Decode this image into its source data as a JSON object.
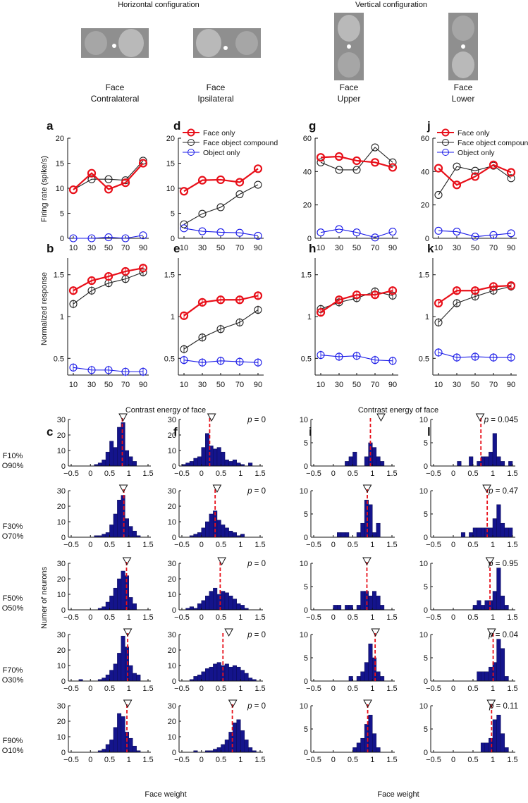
{
  "configs": [
    {
      "title": "Horizontal configuration"
    },
    {
      "title": "Vertical configuration"
    }
  ],
  "conditions": [
    {
      "label1": "Face",
      "label2": "Contralateral"
    },
    {
      "label1": "Face",
      "label2": "Ipsilateral"
    },
    {
      "label1": "Face",
      "label2": "Upper"
    },
    {
      "label1": "Face",
      "label2": "Lower"
    }
  ],
  "legend": {
    "face_only": "Face only",
    "compound": "Face object compound",
    "object_only": "Object only",
    "colors": {
      "face_only": "#e8101a",
      "compound": "#222222",
      "object_only": "#1a1ae8"
    }
  },
  "axis_labels": {
    "firing_rate": "Firing rate (spike/s)",
    "normalized": "Normalized response",
    "contrast": "Contrast energy of face",
    "neurons": "Numer of neurons",
    "face_weight": "Face weight"
  },
  "row_labels": [
    {
      "a": "F10%",
      "b": "O90%"
    },
    {
      "a": "F30%",
      "b": "O70%"
    },
    {
      "a": "F50%",
      "b": "O50%"
    },
    {
      "a": "F70%",
      "b": "O30%"
    },
    {
      "a": "F90%",
      "b": "O10%"
    }
  ],
  "chart_data": [
    {
      "panel": "a",
      "type": "line",
      "xticks": [
        "10",
        "30",
        "50",
        "70",
        "90"
      ],
      "ylim": [
        0,
        20
      ],
      "yticks": [
        "0",
        "5",
        "10",
        "15",
        "20"
      ],
      "series": [
        {
          "key": "face_only",
          "values": [
            9.7,
            13.0,
            9.8,
            11.1,
            15.0
          ]
        },
        {
          "key": "compound",
          "values": [
            9.7,
            11.8,
            11.8,
            11.6,
            15.5
          ]
        },
        {
          "key": "object_only",
          "values": [
            0.0,
            0.0,
            0.2,
            0.0,
            0.6
          ]
        }
      ]
    },
    {
      "panel": "d",
      "type": "line",
      "xticks": [
        "10",
        "30",
        "50",
        "70",
        "90"
      ],
      "ylim": [
        0,
        20
      ],
      "yticks": [
        "0",
        "5",
        "10",
        "15",
        "20"
      ],
      "legend": true,
      "series": [
        {
          "key": "face_only",
          "values": [
            9.4,
            11.6,
            11.7,
            11.2,
            13.9
          ]
        },
        {
          "key": "compound",
          "values": [
            2.8,
            4.9,
            6.2,
            8.8,
            10.7
          ]
        },
        {
          "key": "object_only",
          "values": [
            2.0,
            1.4,
            1.2,
            1.1,
            0.5
          ]
        }
      ]
    },
    {
      "panel": "g",
      "type": "line",
      "xticks": [
        "10",
        "30",
        "50",
        "70",
        "90"
      ],
      "ylim": [
        0,
        60
      ],
      "yticks": [
        "0",
        "20",
        "40",
        "60"
      ],
      "series": [
        {
          "key": "face_only",
          "values": [
            48.5,
            49.0,
            46.5,
            45.5,
            42.5
          ]
        },
        {
          "key": "compound",
          "values": [
            45.5,
            41.0,
            41.0,
            54.5,
            45.5
          ]
        },
        {
          "key": "object_only",
          "values": [
            3.5,
            5.5,
            3.5,
            0.5,
            4.0
          ]
        }
      ]
    },
    {
      "panel": "j",
      "type": "line",
      "xticks": [
        "10",
        "30",
        "50",
        "70",
        "90"
      ],
      "ylim": [
        0,
        60
      ],
      "yticks": [
        "0",
        "20",
        "40",
        "60"
      ],
      "legend": true,
      "series": [
        {
          "key": "face_only",
          "values": [
            42.0,
            32.0,
            37.0,
            44.0,
            39.5
          ]
        },
        {
          "key": "compound",
          "values": [
            26.0,
            43.0,
            40.5,
            43.5,
            36.0
          ]
        },
        {
          "key": "object_only",
          "values": [
            4.5,
            4.0,
            1.0,
            2.0,
            3.0
          ]
        }
      ]
    },
    {
      "panel": "b",
      "type": "line",
      "xticks": [
        "10",
        "30",
        "50",
        "70",
        "90"
      ],
      "ylim": [
        0.3,
        1.7
      ],
      "yticks": [
        "0.5",
        "1",
        "1.5"
      ],
      "ytick_values": [
        0.5,
        1,
        1.5
      ],
      "series": [
        {
          "key": "face_only",
          "values": [
            1.31,
            1.43,
            1.48,
            1.54,
            1.58
          ]
        },
        {
          "key": "compound",
          "values": [
            1.15,
            1.31,
            1.4,
            1.45,
            1.53
          ]
        },
        {
          "key": "object_only",
          "values": [
            0.39,
            0.36,
            0.36,
            0.34,
            0.34
          ]
        }
      ]
    },
    {
      "panel": "e",
      "type": "line",
      "xticks": [
        "10",
        "30",
        "50",
        "70",
        "90"
      ],
      "ylim": [
        0.3,
        1.7
      ],
      "yticks": [
        "0.5",
        "1",
        "1.5"
      ],
      "ytick_values": [
        0.5,
        1,
        1.5
      ],
      "series": [
        {
          "key": "face_only",
          "values": [
            1.01,
            1.17,
            1.2,
            1.2,
            1.25
          ]
        },
        {
          "key": "compound",
          "values": [
            0.61,
            0.75,
            0.85,
            0.93,
            1.08
          ]
        },
        {
          "key": "object_only",
          "values": [
            0.48,
            0.45,
            0.47,
            0.46,
            0.45
          ]
        }
      ]
    },
    {
      "panel": "h",
      "type": "line",
      "xticks": [
        "10",
        "30",
        "50",
        "70",
        "90"
      ],
      "ylim": [
        0.3,
        1.7
      ],
      "yticks": [
        "0.5",
        "1",
        "1.5"
      ],
      "ytick_values": [
        0.5,
        1,
        1.5
      ],
      "series": [
        {
          "key": "face_only",
          "values": [
            1.05,
            1.2,
            1.26,
            1.26,
            1.31
          ]
        },
        {
          "key": "compound",
          "values": [
            1.09,
            1.17,
            1.22,
            1.3,
            1.25
          ]
        },
        {
          "key": "object_only",
          "values": [
            0.54,
            0.52,
            0.53,
            0.48,
            0.47
          ]
        }
      ]
    },
    {
      "panel": "k",
      "type": "line",
      "xticks": [
        "10",
        "30",
        "50",
        "70",
        "90"
      ],
      "ylim": [
        0.3,
        1.7
      ],
      "yticks": [
        "0.5",
        "1",
        "1.5"
      ],
      "ytick_values": [
        0.5,
        1,
        1.5
      ],
      "series": [
        {
          "key": "face_only",
          "values": [
            1.16,
            1.31,
            1.31,
            1.36,
            1.37
          ]
        },
        {
          "key": "compound",
          "values": [
            0.93,
            1.16,
            1.24,
            1.31,
            1.36
          ]
        },
        {
          "key": "object_only",
          "values": [
            0.57,
            0.51,
            0.52,
            0.51,
            0.51
          ]
        }
      ]
    }
  ],
  "histograms": {
    "type": "histogram",
    "xlim": [
      -0.5,
      1.5
    ],
    "xticks": [
      "−0.5",
      "0",
      "0.5",
      "1",
      "1.5"
    ],
    "xtick_values": [
      -0.5,
      0,
      0.5,
      1,
      1.5
    ],
    "bin_start": -0.5,
    "bin_width": 0.1,
    "p_label": "p",
    "columns": [
      {
        "letter": "c",
        "ylim": 30,
        "yticks": [
          "0",
          "10",
          "20",
          "30"
        ],
        "rows": [
          {
            "counts": [
              0,
              0,
              0,
              0,
              0,
              0,
              1,
              2,
              4,
              9,
              16,
              12,
              25,
              28,
              10,
              6,
              3,
              0,
              0,
              0
            ],
            "median": 0.83,
            "mean": 0.85,
            "p": ""
          },
          {
            "counts": [
              0,
              0,
              0,
              0,
              0,
              0,
              1,
              1,
              2,
              3,
              8,
              15,
              24,
              27,
              12,
              7,
              4,
              1,
              0,
              0
            ],
            "median": 0.87,
            "mean": 0.86,
            "p": ""
          },
          {
            "counts": [
              0,
              0,
              0,
              0,
              0,
              0,
              0,
              1,
              2,
              5,
              9,
              14,
              20,
              25,
              22,
              8,
              4,
              0,
              0,
              0
            ],
            "median": 0.94,
            "mean": 0.95,
            "p": ""
          },
          {
            "counts": [
              0,
              0,
              1,
              0,
              0,
              0,
              0,
              1,
              2,
              4,
              7,
              11,
              18,
              29,
              22,
              10,
              5,
              4,
              0,
              0
            ],
            "median": 0.97,
            "mean": 0.97,
            "p": ""
          },
          {
            "counts": [
              0,
              0,
              0,
              0,
              0,
              0,
              0,
              1,
              2,
              5,
              8,
              16,
              25,
              23,
              13,
              9,
              4,
              1,
              0,
              0
            ],
            "median": 0.95,
            "mean": 0.97,
            "p": ""
          }
        ]
      },
      {
        "letter": "f",
        "ylim": 30,
        "yticks": [
          "0",
          "10",
          "20",
          "30"
        ],
        "rows": [
          {
            "counts": [
              1,
              2,
              3,
              5,
              6,
              12,
              21,
              13,
              11,
              12,
              9,
              4,
              3,
              4,
              2,
              1,
              0,
              2,
              0,
              0
            ],
            "median": 0.21,
            "mean": 0.26,
            "p": "0"
          },
          {
            "counts": [
              0,
              0,
              1,
              2,
              3,
              6,
              10,
              15,
              17,
              11,
              8,
              6,
              4,
              3,
              1,
              2,
              0,
              0,
              0,
              0
            ],
            "median": 0.35,
            "mean": 0.4,
            "p": "0"
          },
          {
            "counts": [
              0,
              1,
              2,
              1,
              4,
              6,
              9,
              12,
              14,
              10,
              12,
              11,
              9,
              7,
              4,
              3,
              1,
              0,
              0,
              0
            ],
            "median": 0.48,
            "mean": 0.52,
            "p": "0"
          },
          {
            "counts": [
              0,
              0,
              1,
              3,
              4,
              6,
              8,
              9,
              11,
              12,
              10,
              11,
              9,
              10,
              9,
              7,
              5,
              2,
              1,
              0
            ],
            "median": 0.55,
            "mean": 0.7,
            "p": "0"
          },
          {
            "counts": [
              0,
              0,
              0,
              1,
              0,
              0,
              1,
              1,
              2,
              3,
              5,
              8,
              13,
              19,
              21,
              14,
              8,
              3,
              1,
              0
            ],
            "median": 0.79,
            "mean": 0.8,
            "p": "0"
          }
        ]
      },
      {
        "letter": "i",
        "ylim": 10,
        "yticks": [
          "0",
          "5",
          "10"
        ],
        "rows": [
          {
            "counts": [
              0,
              0,
              0,
              0,
              0,
              0,
              0,
              0,
              1,
              2,
              3,
              0,
              0,
              2,
              5,
              4,
              2,
              1,
              0,
              0
            ],
            "median": 0.95,
            "mean": 1.22,
            "p": ""
          },
          {
            "counts": [
              0,
              0,
              0,
              0,
              0,
              0,
              1,
              1,
              1,
              0,
              0,
              1,
              3,
              8,
              7,
              1,
              3,
              0,
              0,
              0
            ],
            "median": 0.87,
            "mean": 0.87,
            "p": ""
          },
          {
            "counts": [
              0,
              0,
              0,
              0,
              0,
              1,
              1,
              0,
              1,
              1,
              0,
              1,
              4,
              4,
              3,
              4,
              3,
              1,
              0,
              0
            ],
            "median": 0.86,
            "mean": 0.86,
            "p": ""
          },
          {
            "counts": [
              0,
              0,
              0,
              0,
              0,
              0,
              0,
              0,
              0,
              1,
              0,
              1,
              2,
              4,
              8,
              5,
              2,
              1,
              0,
              0
            ],
            "median": 1.07,
            "mean": 1.08,
            "p": ""
          },
          {
            "counts": [
              0,
              0,
              0,
              0,
              0,
              0,
              0,
              0,
              0,
              0,
              1,
              2,
              3,
              6,
              8,
              4,
              1,
              0,
              0,
              0
            ],
            "median": 0.88,
            "mean": 0.88,
            "p": ""
          }
        ]
      },
      {
        "letter": "l",
        "ylim": 10,
        "yticks": [
          "0",
          "5",
          "10"
        ],
        "rows": [
          {
            "counts": [
              0,
              0,
              0,
              0,
              0,
              0,
              1,
              0,
              0,
              2,
              0,
              1,
              2,
              2,
              3,
              7,
              2,
              1,
              0,
              1
            ],
            "median": 0.7,
            "mean": 0.68,
            "p": "0.045"
          },
          {
            "counts": [
              0,
              0,
              0,
              0,
              0,
              0,
              0,
              1,
              0,
              1,
              2,
              2,
              2,
              2,
              2,
              4,
              7,
              3,
              2,
              2
            ],
            "median": 0.86,
            "mean": 0.85,
            "p": "0.47"
          },
          {
            "counts": [
              0,
              0,
              0,
              0,
              0,
              0,
              0,
              0,
              0,
              0,
              1,
              2,
              1,
              2,
              2,
              4,
              9,
              3,
              1,
              0
            ],
            "median": 0.93,
            "mean": 0.93,
            "p": "0.95"
          },
          {
            "counts": [
              0,
              0,
              0,
              0,
              0,
              0,
              0,
              0,
              0,
              0,
              0,
              2,
              2,
              2,
              3,
              4,
              9,
              7,
              1,
              0
            ],
            "median": 1.01,
            "mean": 0.97,
            "p": "0.04"
          },
          {
            "counts": [
              0,
              0,
              0,
              0,
              0,
              0,
              0,
              0,
              0,
              0,
              0,
              0,
              2,
              2,
              3,
              7,
              8,
              4,
              1,
              0
            ],
            "median": 0.97,
            "mean": 0.96,
            "p": "0.11"
          }
        ]
      }
    ]
  }
}
